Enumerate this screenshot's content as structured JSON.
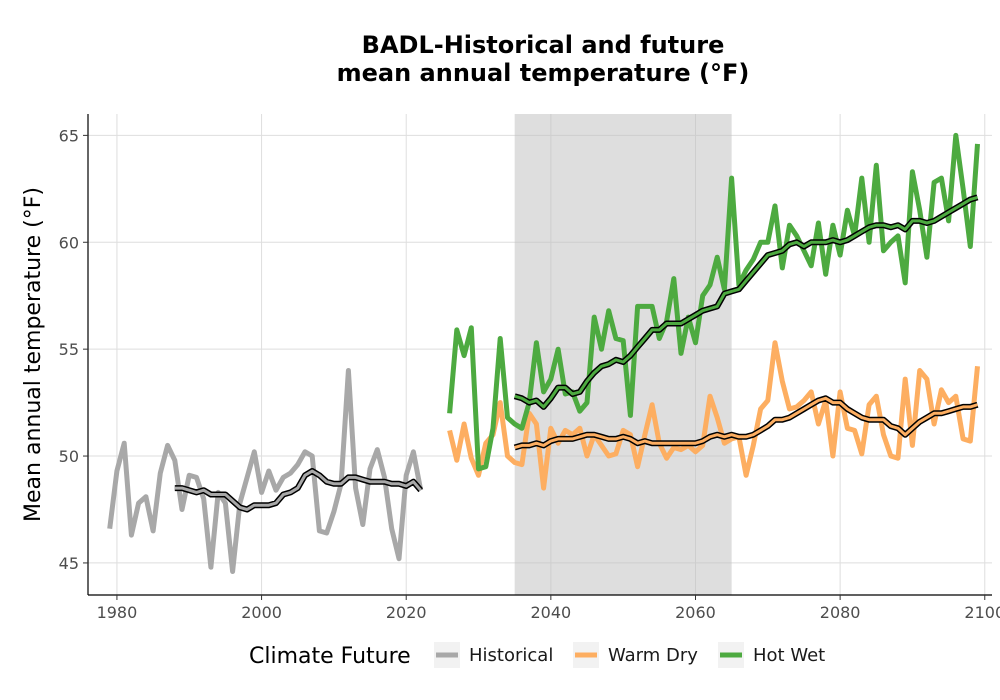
{
  "chart_data": {
    "type": "line",
    "title": "BADL-Historical and future\nmean annual temperature (°F)",
    "xlabel": "",
    "ylabel": "Mean annual temperature (°F)",
    "xlim": [
      1976,
      2101
    ],
    "ylim": [
      43.5,
      66
    ],
    "xticks": [
      1980,
      2000,
      2020,
      2040,
      2060,
      2080,
      2100
    ],
    "yticks": [
      45,
      50,
      55,
      60,
      65
    ],
    "grid": true,
    "shaded_period": [
      2035,
      2065
    ],
    "legend": {
      "title": "Climate Future",
      "position": "bottom"
    },
    "series": [
      {
        "name": "Historical",
        "color": "#a8a8a8",
        "x": [
          1979,
          1980,
          1981,
          1982,
          1983,
          1984,
          1985,
          1986,
          1987,
          1988,
          1989,
          1990,
          1991,
          1992,
          1993,
          1994,
          1995,
          1996,
          1997,
          1998,
          1999,
          2000,
          2001,
          2002,
          2003,
          2004,
          2005,
          2006,
          2007,
          2008,
          2009,
          2010,
          2011,
          2012,
          2013,
          2014,
          2015,
          2016,
          2017,
          2018,
          2019,
          2020,
          2021,
          2022
        ],
        "values": [
          46.6,
          49.3,
          50.6,
          46.3,
          47.8,
          48.1,
          46.5,
          49.2,
          50.5,
          49.8,
          47.5,
          49.1,
          49.0,
          48.0,
          44.8,
          48.3,
          47.8,
          44.6,
          47.8,
          49.0,
          50.2,
          48.3,
          49.3,
          48.4,
          49.0,
          49.2,
          49.6,
          50.2,
          50.0,
          46.5,
          46.4,
          47.4,
          48.7,
          54.0,
          48.5,
          46.8,
          49.4,
          50.3,
          49.0,
          46.6,
          45.2,
          49.1,
          50.2,
          48.4
        ]
      },
      {
        "name": "Warm Dry",
        "color": "#fdae61",
        "x": [
          2026,
          2027,
          2028,
          2029,
          2030,
          2031,
          2032,
          2033,
          2034,
          2035,
          2036,
          2037,
          2038,
          2039,
          2040,
          2041,
          2042,
          2043,
          2044,
          2045,
          2046,
          2047,
          2048,
          2049,
          2050,
          2051,
          2052,
          2053,
          2054,
          2055,
          2056,
          2057,
          2058,
          2059,
          2060,
          2061,
          2062,
          2063,
          2064,
          2065,
          2066,
          2067,
          2068,
          2069,
          2070,
          2071,
          2072,
          2073,
          2074,
          2075,
          2076,
          2077,
          2078,
          2079,
          2080,
          2081,
          2082,
          2083,
          2084,
          2085,
          2086,
          2087,
          2088,
          2089,
          2090,
          2091,
          2092,
          2093,
          2094,
          2095,
          2096,
          2097,
          2098,
          2099
        ],
        "values": [
          51.2,
          49.8,
          51.5,
          49.9,
          49.1,
          50.6,
          51.0,
          52.5,
          50.0,
          49.7,
          49.6,
          52.0,
          51.5,
          48.5,
          51.3,
          50.6,
          51.2,
          51.0,
          51.3,
          50.0,
          51.0,
          50.5,
          50.0,
          50.1,
          51.2,
          51.0,
          49.5,
          51.0,
          52.4,
          50.6,
          49.9,
          50.4,
          50.3,
          50.5,
          50.2,
          50.5,
          52.8,
          51.8,
          50.6,
          50.8,
          50.9,
          49.1,
          50.5,
          52.2,
          52.6,
          55.3,
          53.5,
          52.2,
          52.3,
          52.6,
          53.0,
          51.5,
          52.6,
          50.0,
          53.0,
          51.3,
          51.2,
          50.1,
          52.4,
          52.8,
          51.0,
          50.0,
          49.9,
          53.6,
          50.5,
          54.0,
          53.6,
          51.5,
          53.1,
          52.5,
          52.8,
          50.8,
          50.7,
          54.2
        ]
      },
      {
        "name": "Hot Wet",
        "color": "#4daa40",
        "x": [
          2026,
          2027,
          2028,
          2029,
          2030,
          2031,
          2032,
          2033,
          2034,
          2035,
          2036,
          2037,
          2038,
          2039,
          2040,
          2041,
          2042,
          2043,
          2044,
          2045,
          2046,
          2047,
          2048,
          2049,
          2050,
          2051,
          2052,
          2053,
          2054,
          2055,
          2056,
          2057,
          2058,
          2059,
          2060,
          2061,
          2062,
          2063,
          2064,
          2065,
          2066,
          2067,
          2068,
          2069,
          2070,
          2071,
          2072,
          2073,
          2074,
          2075,
          2076,
          2077,
          2078,
          2079,
          2080,
          2081,
          2082,
          2083,
          2084,
          2085,
          2086,
          2087,
          2088,
          2089,
          2090,
          2091,
          2092,
          2093,
          2094,
          2095,
          2096,
          2097,
          2098,
          2099
        ],
        "values": [
          52.0,
          55.9,
          54.7,
          56.0,
          49.4,
          49.5,
          51.3,
          55.5,
          51.8,
          51.5,
          51.3,
          52.5,
          55.3,
          53.0,
          53.6,
          55.0,
          52.9,
          53.0,
          52.1,
          52.5,
          56.5,
          55.0,
          56.8,
          55.5,
          55.4,
          51.9,
          57.0,
          57.0,
          57.0,
          55.5,
          56.3,
          58.3,
          54.8,
          56.5,
          55.3,
          57.5,
          58.0,
          59.3,
          57.8,
          63.0,
          58.0,
          58.7,
          59.2,
          60.0,
          60.0,
          61.7,
          58.8,
          60.8,
          60.3,
          59.6,
          58.9,
          60.9,
          58.5,
          60.8,
          59.4,
          61.5,
          60.3,
          63.0,
          60.0,
          63.6,
          59.6,
          60.0,
          60.3,
          58.1,
          63.3,
          61.5,
          59.3,
          62.8,
          63.0,
          61.0,
          65.0,
          62.5,
          59.8,
          64.6
        ]
      },
      {
        "name": "",
        "color": "#a8a8a8",
        "smoothed_of": "Historical",
        "x": [
          1988,
          1989,
          1990,
          1991,
          1992,
          1993,
          1994,
          1995,
          1996,
          1997,
          1998,
          1999,
          2000,
          2001,
          2002,
          2003,
          2004,
          2005,
          2006,
          2007,
          2008,
          2009,
          2010,
          2011,
          2012,
          2013,
          2014,
          2015,
          2016,
          2017,
          2018,
          2019,
          2020,
          2021,
          2022
        ],
        "values": [
          48.5,
          48.5,
          48.4,
          48.3,
          48.4,
          48.2,
          48.2,
          48.2,
          47.9,
          47.6,
          47.5,
          47.7,
          47.7,
          47.7,
          47.8,
          48.2,
          48.3,
          48.5,
          49.1,
          49.3,
          49.1,
          48.8,
          48.7,
          48.7,
          49.0,
          49.0,
          48.9,
          48.8,
          48.8,
          48.8,
          48.7,
          48.7,
          48.6,
          48.8,
          48.4
        ]
      },
      {
        "name": "",
        "color": "#fdae61",
        "smoothed_of": "Warm Dry",
        "x": [
          2035,
          2036,
          2037,
          2038,
          2039,
          2040,
          2041,
          2042,
          2043,
          2044,
          2045,
          2046,
          2047,
          2048,
          2049,
          2050,
          2051,
          2052,
          2053,
          2054,
          2055,
          2056,
          2057,
          2058,
          2059,
          2060,
          2061,
          2062,
          2063,
          2064,
          2065,
          2066,
          2067,
          2068,
          2069,
          2070,
          2071,
          2072,
          2073,
          2074,
          2075,
          2076,
          2077,
          2078,
          2079,
          2080,
          2081,
          2082,
          2083,
          2084,
          2085,
          2086,
          2087,
          2088,
          2089,
          2090,
          2091,
          2092,
          2093,
          2094,
          2095,
          2096,
          2097,
          2098,
          2099
        ],
        "values": [
          50.4,
          50.5,
          50.5,
          50.6,
          50.5,
          50.7,
          50.8,
          50.8,
          50.8,
          50.9,
          51.0,
          51.0,
          50.9,
          50.8,
          50.8,
          50.9,
          50.8,
          50.6,
          50.7,
          50.6,
          50.6,
          50.6,
          50.6,
          50.6,
          50.6,
          50.6,
          50.7,
          50.9,
          51.0,
          50.9,
          51.0,
          50.9,
          50.9,
          51.0,
          51.2,
          51.4,
          51.7,
          51.7,
          51.8,
          52.0,
          52.2,
          52.4,
          52.6,
          52.7,
          52.5,
          52.5,
          52.2,
          52.0,
          51.8,
          51.7,
          51.7,
          51.7,
          51.4,
          51.3,
          51.0,
          51.3,
          51.6,
          51.8,
          52.0,
          52.0,
          52.1,
          52.2,
          52.3,
          52.3,
          52.4
        ]
      },
      {
        "name": "",
        "color": "#4daa40",
        "smoothed_of": "Hot Wet",
        "x": [
          2035,
          2036,
          2037,
          2038,
          2039,
          2040,
          2041,
          2042,
          2043,
          2044,
          2045,
          2046,
          2047,
          2048,
          2049,
          2050,
          2051,
          2052,
          2053,
          2054,
          2055,
          2056,
          2057,
          2058,
          2059,
          2060,
          2061,
          2062,
          2063,
          2064,
          2065,
          2066,
          2067,
          2068,
          2069,
          2070,
          2071,
          2072,
          2073,
          2074,
          2075,
          2076,
          2077,
          2078,
          2079,
          2080,
          2081,
          2082,
          2083,
          2084,
          2085,
          2086,
          2087,
          2088,
          2089,
          2090,
          2091,
          2092,
          2093,
          2094,
          2095,
          2096,
          2097,
          2098,
          2099
        ],
        "values": [
          52.8,
          52.7,
          52.5,
          52.6,
          52.3,
          52.7,
          53.2,
          53.2,
          52.9,
          53.0,
          53.5,
          53.9,
          54.2,
          54.3,
          54.5,
          54.4,
          54.7,
          55.1,
          55.5,
          55.9,
          55.9,
          56.2,
          56.2,
          56.2,
          56.4,
          56.6,
          56.8,
          56.9,
          57.0,
          57.6,
          57.7,
          57.8,
          58.2,
          58.6,
          59.0,
          59.4,
          59.5,
          59.6,
          59.9,
          60.0,
          59.8,
          60.0,
          60.0,
          60.0,
          60.1,
          60.0,
          60.1,
          60.3,
          60.5,
          60.7,
          60.8,
          60.8,
          60.7,
          60.8,
          60.6,
          61.0,
          61.0,
          60.9,
          61.0,
          61.2,
          61.4,
          61.6,
          61.8,
          62.0,
          62.1
        ]
      }
    ]
  }
}
